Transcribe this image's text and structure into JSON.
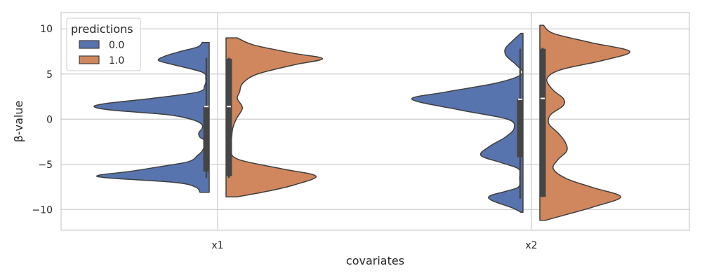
{
  "chart_data": {
    "type": "violin",
    "split": true,
    "title": "",
    "xlabel": "covariates",
    "ylabel": "β-value",
    "categories": [
      "x1",
      "x2"
    ],
    "ylim": [
      -12.3,
      11.8
    ],
    "yticks": [
      -10,
      -5,
      0,
      5,
      10
    ],
    "grid": true,
    "legend": {
      "title": "predictions",
      "placement": "top-left",
      "entries": [
        "0.0",
        "1.0"
      ]
    },
    "colors": {
      "0.0": "#5874AE",
      "1.0": "#D1875D",
      "edge": "#3F3F3F",
      "box": "#454545",
      "grid": "#CCCCCC"
    },
    "series": [
      {
        "name": "0.0",
        "violins": [
          {
            "category": "x1",
            "range": [
              -8.1,
              8.5
            ],
            "density": [
              [
                -8.1,
                0.08
              ],
              [
                -7.5,
                0.12
              ],
              [
                -7.0,
                0.3
              ],
              [
                -6.5,
                0.88
              ],
              [
                -6.2,
                0.96
              ],
              [
                -5.8,
                0.7
              ],
              [
                -5.3,
                0.45
              ],
              [
                -4.7,
                0.18
              ],
              [
                -4.0,
                0.1
              ],
              [
                -3.5,
                0.06
              ],
              [
                -2.5,
                0.03
              ],
              [
                -2.0,
                0.08
              ],
              [
                -1.5,
                0.09
              ],
              [
                -1.0,
                0.06
              ],
              [
                -0.5,
                0.07
              ],
              [
                0.0,
                0.16
              ],
              [
                0.5,
                0.36
              ],
              [
                1.0,
                0.84
              ],
              [
                1.4,
                1.0
              ],
              [
                1.8,
                0.86
              ],
              [
                2.3,
                0.5
              ],
              [
                3.0,
                0.1
              ],
              [
                3.7,
                0.04
              ],
              [
                4.5,
                0.03
              ],
              [
                5.2,
                0.06
              ],
              [
                6.0,
                0.3
              ],
              [
                6.5,
                0.44
              ],
              [
                7.0,
                0.38
              ],
              [
                7.5,
                0.25
              ],
              [
                8.0,
                0.1
              ],
              [
                8.5,
                0.06
              ]
            ],
            "quartiles": [
              -5.8,
              1.4,
              1.4
            ],
            "whiskers": [
              -6.5,
              6.8
            ]
          },
          {
            "category": "x2",
            "range": [
              -10.3,
              9.5
            ],
            "density": [
              [
                -10.3,
                0.02
              ],
              [
                -9.8,
                0.1
              ],
              [
                -9.0,
                0.28
              ],
              [
                -8.5,
                0.3
              ],
              [
                -8.0,
                0.16
              ],
              [
                -7.5,
                0.04
              ],
              [
                -6.5,
                0.03
              ],
              [
                -5.5,
                0.04
              ],
              [
                -4.8,
                0.2
              ],
              [
                -4.0,
                0.38
              ],
              [
                -3.0,
                0.3
              ],
              [
                -2.0,
                0.16
              ],
              [
                -1.0,
                0.08
              ],
              [
                0.0,
                0.14
              ],
              [
                1.0,
                0.56
              ],
              [
                2.2,
                1.0
              ],
              [
                3.0,
                0.7
              ],
              [
                4.0,
                0.24
              ],
              [
                5.0,
                0.01
              ],
              [
                6.0,
                0.06
              ],
              [
                7.0,
                0.15
              ],
              [
                7.8,
                0.16
              ],
              [
                8.6,
                0.1
              ],
              [
                9.5,
                0.02
              ]
            ],
            "quartiles": [
              -4.2,
              2.2,
              2.2
            ],
            "whiskers": [
              -8.8,
              7.8
            ]
          }
        ]
      },
      {
        "name": "1.0",
        "violins": [
          {
            "category": "x1",
            "range": [
              -8.6,
              9.0
            ],
            "density": [
              [
                -8.6,
                0.1
              ],
              [
                -8.0,
                0.36
              ],
              [
                -7.3,
                0.6
              ],
              [
                -6.3,
                0.8
              ],
              [
                -5.5,
                0.5
              ],
              [
                -4.5,
                0.12
              ],
              [
                -3.5,
                0.04
              ],
              [
                -2.0,
                0.05
              ],
              [
                -1.0,
                0.06
              ],
              [
                0.0,
                0.09
              ],
              [
                1.0,
                0.14
              ],
              [
                1.5,
                0.14
              ],
              [
                2.3,
                0.1
              ],
              [
                3.0,
                0.12
              ],
              [
                4.0,
                0.15
              ],
              [
                5.0,
                0.28
              ],
              [
                6.0,
                0.6
              ],
              [
                6.7,
                0.86
              ],
              [
                7.3,
                0.6
              ],
              [
                8.2,
                0.25
              ],
              [
                9.0,
                0.1
              ]
            ],
            "quartiles": [
              -6.3,
              1.4,
              6.7
            ],
            "whiskers": [
              -6.5,
              6.8
            ]
          },
          {
            "category": "x2",
            "range": [
              -11.2,
              10.4
            ],
            "density": [
              [
                -11.2,
                0.06
              ],
              [
                -10.6,
                0.28
              ],
              [
                -9.7,
                0.6
              ],
              [
                -8.6,
                0.9
              ],
              [
                -7.6,
                0.6
              ],
              [
                -6.6,
                0.3
              ],
              [
                -5.5,
                0.15
              ],
              [
                -4.5,
                0.2
              ],
              [
                -3.5,
                0.3
              ],
              [
                -2.5,
                0.28
              ],
              [
                -1.5,
                0.2
              ],
              [
                -0.5,
                0.1
              ],
              [
                0.5,
                0.12
              ],
              [
                1.5,
                0.26
              ],
              [
                2.3,
                0.26
              ],
              [
                3.3,
                0.14
              ],
              [
                4.5,
                0.08
              ],
              [
                5.5,
                0.24
              ],
              [
                6.5,
                0.7
              ],
              [
                7.5,
                1.0
              ],
              [
                8.5,
                0.56
              ],
              [
                9.5,
                0.15
              ],
              [
                10.4,
                0.04
              ]
            ],
            "quartiles": [
              -8.6,
              2.3,
              7.8
            ],
            "whiskers": [
              -8.6,
              7.9
            ]
          }
        ]
      }
    ]
  }
}
